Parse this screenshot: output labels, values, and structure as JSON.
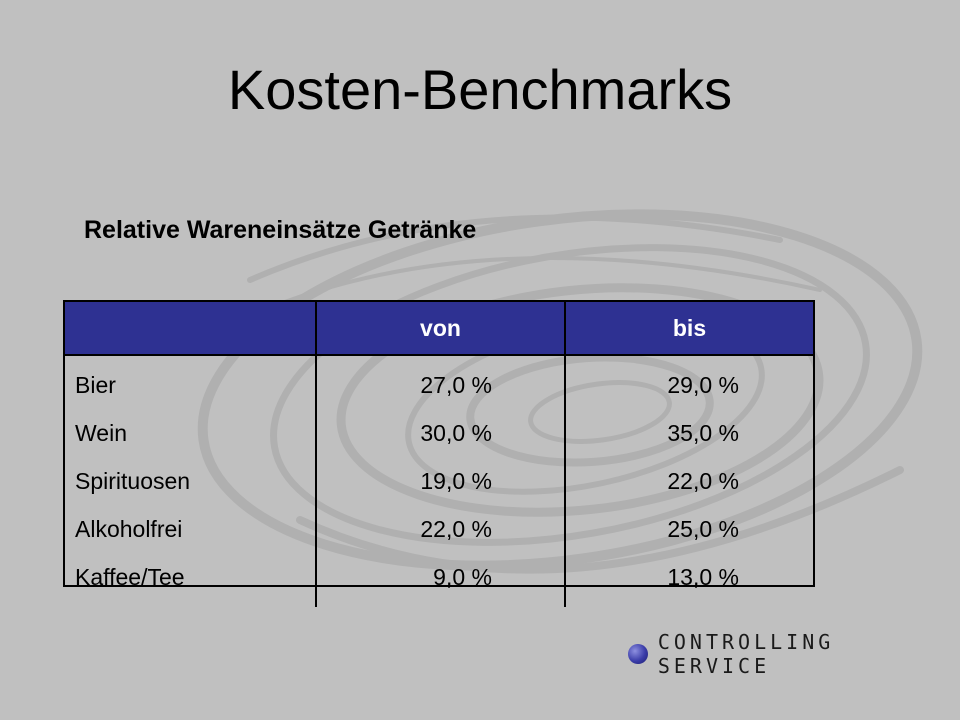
{
  "slide": {
    "title": "Kosten-Benchmarks",
    "subtitle": "Relative Wareneinsätze Getränke"
  },
  "table": {
    "headers": [
      "",
      "von",
      "bis"
    ],
    "rows": [
      {
        "label": "Bier",
        "von": "27,0 %",
        "bis": "29,0 %"
      },
      {
        "label": "Wein",
        "von": "30,0 %",
        "bis": "35,0 %"
      },
      {
        "label": "Spirituosen",
        "von": "19,0 %",
        "bis": "22,0 %"
      },
      {
        "label": "Alkoholfrei",
        "von": "22,0 %",
        "bis": "25,0 %"
      },
      {
        "label": "Kaffee/Tee",
        "von": "9,0 %",
        "bis": "13,0 %"
      }
    ]
  },
  "logo": {
    "text": "CONTROLLING SERVICE",
    "icon": "blue-sphere-icon"
  },
  "colors": {
    "background": "#c0c0c0",
    "header_fill": "#2e3192",
    "header_text": "#ffffff"
  }
}
